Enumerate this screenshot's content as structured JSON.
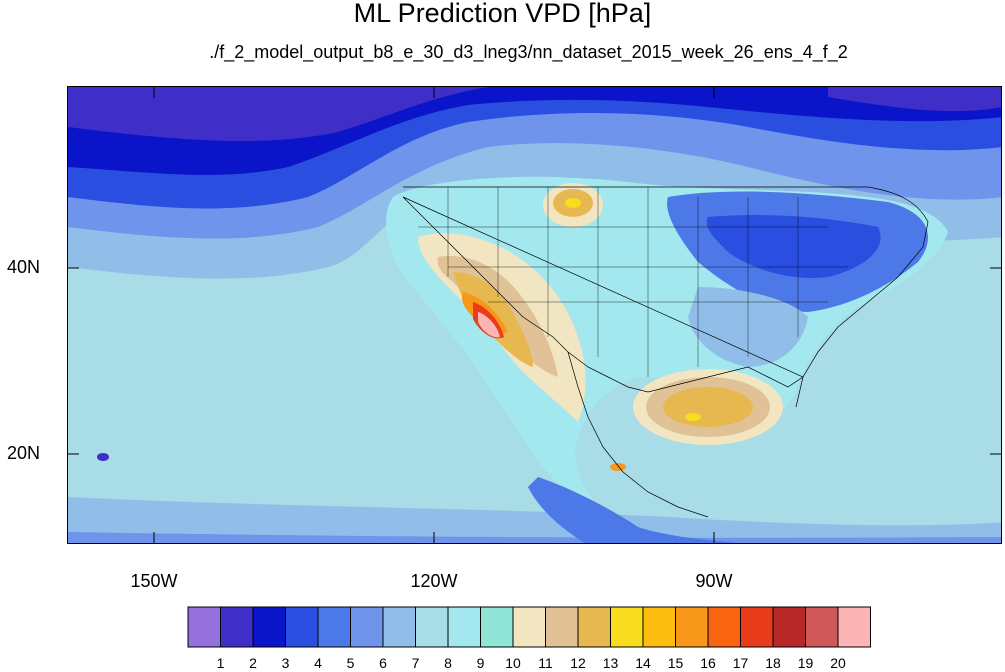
{
  "title": "ML Prediction VPD [hPa]",
  "subtitle": "./f_2_model_output_b8_e_30_d3_lneg3/nn_dataset_2015_week_26_ens_4_f_2",
  "y_ticks": [
    "40N",
    "20N"
  ],
  "x_ticks": [
    "150W",
    "120W",
    "90W"
  ],
  "colorbar": {
    "labels": [
      "1",
      "2",
      "3",
      "4",
      "5",
      "6",
      "7",
      "8",
      "9",
      "10",
      "11",
      "12",
      "13",
      "14",
      "15",
      "16",
      "17",
      "18",
      "19",
      "20"
    ],
    "colors": [
      "#9370db",
      "#3f2fc8",
      "#0a14c8",
      "#2a4ee0",
      "#4d78e8",
      "#6e94ec",
      "#90bee8",
      "#a8dce6",
      "#a2e8ee",
      "#90e6d6",
      "#f2e6c2",
      "#e0c296",
      "#e8b850",
      "#f8dc20",
      "#fcbc10",
      "#f8981a",
      "#f86410",
      "#e83c1a",
      "#b82828",
      "#d05858",
      "#fcb4b4"
    ]
  },
  "colors": {
    "ocean_cool": "#4d78e8",
    "ocean_mid": "#90bee8",
    "ocean_warm": "#a8dce6",
    "land_high": "#e8b850",
    "border": "#000000"
  }
}
